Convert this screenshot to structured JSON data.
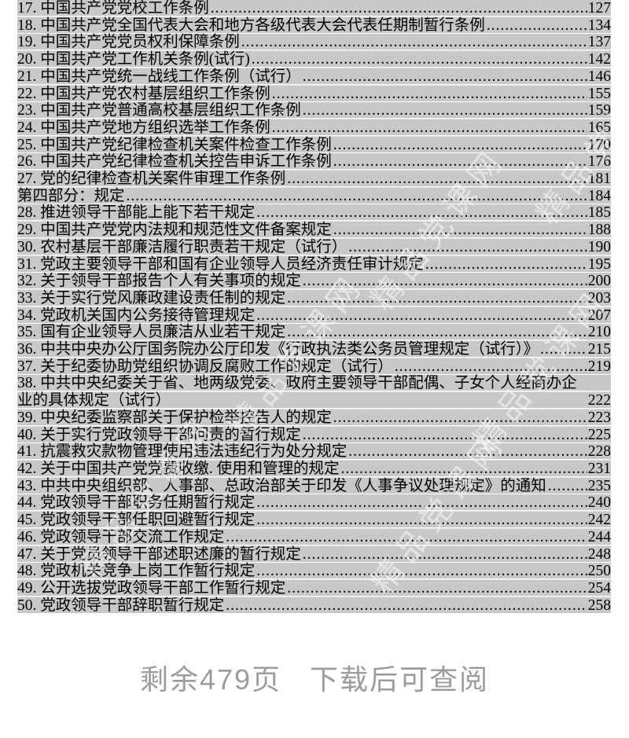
{
  "document": {
    "toc_leader_char": ".",
    "toc_entries": [
      {
        "label": "17. 中国共产党党校工作条例",
        "page": "127"
      },
      {
        "label": "18. 中国共产党全国代表大会和地方各级代表大会代表任期制暂行条例",
        "page": "134"
      },
      {
        "label": "19. 中国共产党党员权利保障条例",
        "page": "137"
      },
      {
        "label": "20. 中国共产党工作机关条例(试行)",
        "page": "142"
      },
      {
        "label": "21. 中国共产党统一战线工作条例（试行）",
        "page": "146"
      },
      {
        "label": "22. 中国共产党农村基层组织工作条例",
        "page": "155"
      },
      {
        "label": "23. 中国共产党普通高校基层组织工作条例",
        "page": "159"
      },
      {
        "label": "24. 中国共产党地方组织选举工作条例",
        "page": "165"
      },
      {
        "label": "25. 中国共产党纪律检查机关案件检查工作条例",
        "page": "170"
      },
      {
        "label": "26. 中国共产党纪律检查机关控告申诉工作条例",
        "page": "176"
      },
      {
        "label": "27. 党的纪律检查机关案件审理工作条例",
        "page": "181"
      },
      {
        "label": "第四部分：规定",
        "page": "184"
      },
      {
        "label": "28. 推进领导干部能上能下若干规定",
        "page": "185"
      },
      {
        "label": "29. 中国共产党党内法规和规范性文件备案规定",
        "page": "188"
      },
      {
        "label": "30. 农村基层干部廉洁履行职责若干规定（试行）",
        "page": "190"
      },
      {
        "label": "31. 党政主要领导干部和国有企业领导人员经济责任审计规定",
        "page": "195"
      },
      {
        "label": "32. 关于领导干部报告个人有关事项的规定",
        "page": "200"
      },
      {
        "label": "33. 关于实行党风廉政建设责任制的规定",
        "page": "203"
      },
      {
        "label": "34. 党政机关国内公务接待管理规定",
        "page": "207"
      },
      {
        "label": "35. 国有企业领导人员廉洁从业若干规定",
        "page": "210"
      },
      {
        "label": "36. 中共中央办公厅国务院办公厅印发《行政执法类公务员管理规定（试行）》",
        "page": "215"
      },
      {
        "label": "37. 关于纪委协助党组织协调反腐败工作的规定（试行）",
        "page": "219"
      },
      {
        "label": "38. 中共中央纪委关于省、地两级党委、政府主要领导干部配偶、子女个人经商办企业的具体规定（试行）",
        "page": "222"
      },
      {
        "label": "39. 中央纪委监察部关于保护检举控告人的规定",
        "page": "223"
      },
      {
        "label": "40. 关于实行党政领导干部问责的暂行规定",
        "page": "225"
      },
      {
        "label": "41. 抗震救灾款物管理使用违法违纪行为处分规定",
        "page": "228"
      },
      {
        "label": "42. 关于中国共产党党费收缴. 使用和管理的规定",
        "page": "231"
      },
      {
        "label": "43. 中共中央组织部、人事部、总政治部关于印发《人事争议处理规定》的通知",
        "page": "235"
      },
      {
        "label": "44. 党政领导干部职务任期暂行规定",
        "page": "240"
      },
      {
        "label": "45. 党政领导干部任职回避暂行规定",
        "page": "242"
      },
      {
        "label": "46. 党政领导干部交流工作规定",
        "page": "244"
      },
      {
        "label": "47. 关于党员领导干部述职述廉的暂行规定",
        "page": "248"
      },
      {
        "label": "48. 党政机关竞争上岗工作暂行规定",
        "page": "250"
      },
      {
        "label": "49. 公开选拔党政领导干部工作暂行规定",
        "page": "254"
      },
      {
        "label": "50. 党政领导干部辞职暂行规定",
        "page": "258"
      }
    ],
    "watermark_text": "精品党课网",
    "footer_notice": {
      "remaining_pages": "剩余479页",
      "download_hint": "下载后可查阅"
    }
  },
  "colors": {
    "highlight_band": "#c8c8c8",
    "body_text": "#000000",
    "footer_text": "#9c9c9c",
    "page_background": "#ffffff",
    "watermark": "rgba(255,255,255,0.5)"
  }
}
